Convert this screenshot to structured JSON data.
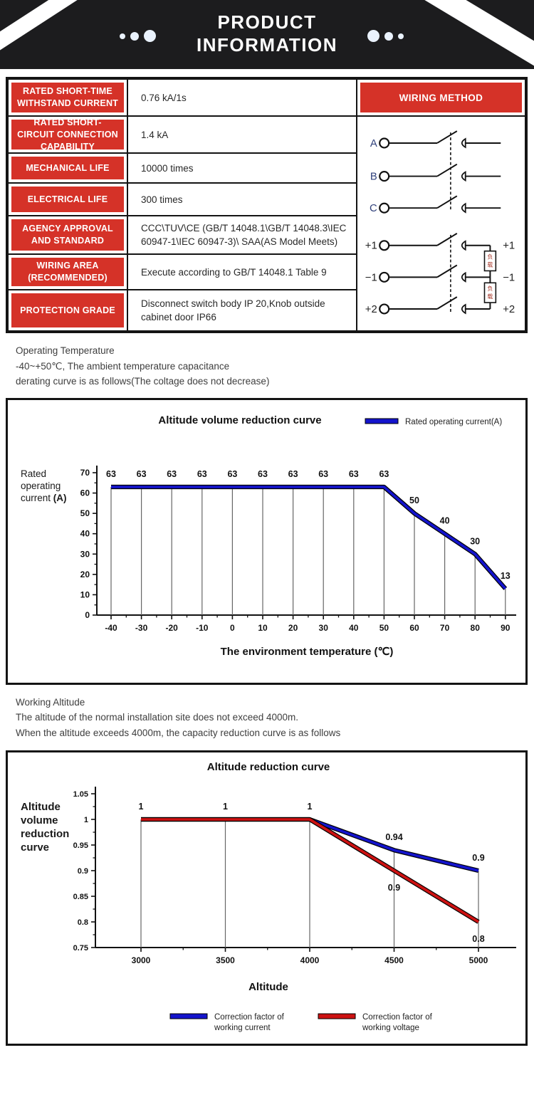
{
  "header": {
    "title_line1": "PRODUCT",
    "title_line2": "INFORMATION"
  },
  "spec_table": {
    "wiring_header": "WIRING METHOD",
    "rows": [
      {
        "label": "RATED SHORT-TIME WITHSTAND CURRENT",
        "value": "0.76 kA/1s"
      },
      {
        "label": "RATED SHORT-CIRCUIT CONNECTION CAPABILITY",
        "value": "1.4 kA"
      },
      {
        "label": "MECHANICAL LIFE",
        "value": "10000 times"
      },
      {
        "label": "ELECTRICAL LIFE",
        "value": "300 times"
      },
      {
        "label": "AGENCY APPROVAL AND STANDARD",
        "value": "CCC\\TUV\\CE (GB/T 14048.1\\GB/T 14048.3\\IEC 60947-1\\IEC 60947-3)\\ SAA(AS Model Meets)"
      },
      {
        "label": "WIRING AREA (RECOMMENDED)",
        "value": "Execute according to GB/T 14048.1 Table 9"
      },
      {
        "label": "PROTECTION GRADE",
        "value": "Disconnect switch body IP 20,Knob outside cabinet door IP66"
      }
    ]
  },
  "wiring": {
    "phase_labels": [
      "A",
      "B",
      "C"
    ],
    "pole_labels_left": [
      "+1",
      "−1",
      "+2"
    ],
    "pole_labels_right": [
      "+1",
      "−1",
      "+2"
    ],
    "load_label": "负载"
  },
  "notes_temperature": {
    "title": "Operating Temperature",
    "line1": " -40~+50℃, The ambient temperature capacitance",
    "line2": "derating curve is as follows(The coltage does not decrease)"
  },
  "notes_altitude": {
    "title": "Working Altitude",
    "line1": "The altitude of the normal installation site does not exceed 4000m.",
    "line2": "When the altitude exceeds 4000m, the capacity reduction curve is as follows"
  },
  "chart_data": [
    {
      "type": "line",
      "title": "Altitude volume reduction curve",
      "xlabel": "The environment temperature (℃)",
      "ylabel": "Rated operating current (A)",
      "ylabel_lines": [
        "Rated",
        "operating",
        "current (A)"
      ],
      "x": [
        -40,
        -30,
        -20,
        -10,
        0,
        10,
        20,
        30,
        40,
        50,
        60,
        70,
        80,
        90
      ],
      "yticks": [
        0,
        10,
        20,
        30,
        40,
        50,
        60,
        70
      ],
      "ylim": [
        0,
        70
      ],
      "grid": "vertical-drop-lines",
      "legend_position": "top-right",
      "series": [
        {
          "name": "Rated operating current(A)",
          "color": "#1414cc",
          "values": [
            63,
            63,
            63,
            63,
            63,
            63,
            63,
            63,
            63,
            63,
            50,
            40,
            30,
            13
          ],
          "labels": {
            "show": "all",
            "side": "above"
          }
        }
      ],
      "legend": [
        {
          "color": "#1414cc",
          "lines": [
            "Rated operating current(A)"
          ]
        }
      ]
    },
    {
      "type": "line",
      "title": "Altitude reduction curve",
      "xlabel": "Altitude",
      "ylabel": "Altitude volume reduction curve",
      "ylabel_lines": [
        "Altitude",
        "volume",
        "reduction",
        "curve"
      ],
      "x": [
        3000,
        3500,
        4000,
        4500,
        5000
      ],
      "yticks": [
        0.75,
        0.8,
        0.85,
        0.9,
        0.95,
        1,
        1.05
      ],
      "ylim": [
        0.75,
        1.05
      ],
      "grid": "vertical-drop-lines",
      "legend_position": "bottom",
      "series": [
        {
          "name": "Correction factor of working current",
          "color": "#1414cc",
          "values": [
            1,
            1,
            1,
            0.94,
            0.9
          ],
          "labels": {
            "show": "all",
            "side": "above"
          }
        },
        {
          "name": "Correction factor of working voltage",
          "color": "#cc1212",
          "values": [
            1,
            1,
            1,
            0.9,
            0.8
          ],
          "labels": {
            "show": [
              3,
              4
            ],
            "side": "below"
          }
        }
      ],
      "legend": [
        {
          "color": "#1414cc",
          "lines": [
            "Correction factor of",
            "working current"
          ]
        },
        {
          "color": "#cc1212",
          "lines": [
            "Correction factor of",
            "working voltage"
          ]
        }
      ]
    }
  ]
}
